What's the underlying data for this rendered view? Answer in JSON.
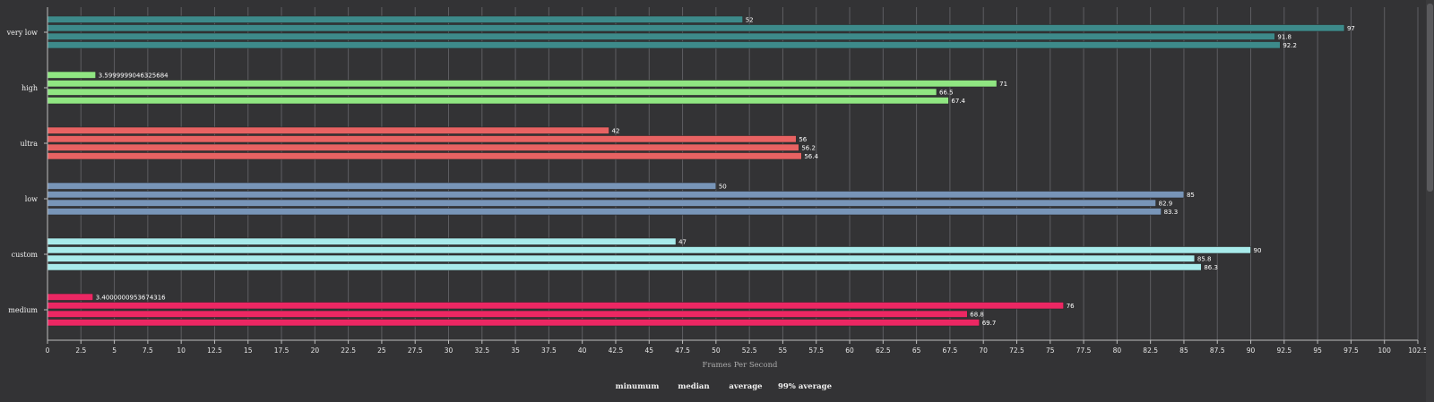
{
  "chart_data": {
    "type": "bar",
    "orientation": "horizontal",
    "title": "",
    "xlabel": "Frames Per Second",
    "ylabel": "",
    "xlim": [
      0,
      102.5
    ],
    "tick_step": 2.5,
    "x_ticks": [
      "0",
      "2.5",
      "5",
      "7.5",
      "10",
      "12.5",
      "15",
      "17.5",
      "20",
      "22.5",
      "25",
      "27.5",
      "30",
      "32.5",
      "35",
      "37.5",
      "40",
      "42.5",
      "45",
      "47.5",
      "50",
      "52.5",
      "55",
      "57.5",
      "60",
      "62.5",
      "65",
      "67.5",
      "70",
      "72.5",
      "75",
      "77.5",
      "80",
      "82.5",
      "85",
      "87.5",
      "90",
      "92.5",
      "95",
      "97.5",
      "100",
      "102.5"
    ],
    "grid": true,
    "legend_position": "bottom",
    "legend": [
      "minumum",
      "median",
      "average",
      "99% average"
    ],
    "categories": [
      {
        "name": "very low",
        "color": "#3d8a8a",
        "values": [
          52,
          97,
          91.8,
          92.2
        ],
        "labels": [
          "52",
          "97",
          "91.8",
          "92.2"
        ]
      },
      {
        "name": "high",
        "color": "#90e682",
        "values": [
          3.5999999046325684,
          71,
          66.5,
          67.4
        ],
        "labels": [
          "3.5999999046325684",
          "71",
          "66.5",
          "67.4"
        ]
      },
      {
        "name": "ultra",
        "color": "#e86262",
        "values": [
          42,
          56,
          56.2,
          56.4
        ],
        "labels": [
          "42",
          "56",
          "56.2",
          "56.4"
        ]
      },
      {
        "name": "low",
        "color": "#7895b8",
        "values": [
          50,
          85,
          82.9,
          83.3
        ],
        "labels": [
          "50",
          "85",
          "82.9",
          "83.3"
        ]
      },
      {
        "name": "custom",
        "color": "#a8ebeb",
        "values": [
          47,
          90,
          85.8,
          86.3
        ],
        "labels": [
          "47",
          "90",
          "85.8",
          "86.3"
        ]
      },
      {
        "name": "medium",
        "color": "#ec2763",
        "values": [
          3.4000000953674316,
          76,
          68.8,
          69.7
        ],
        "labels": [
          "3.4000000953674316",
          "76",
          "68.8",
          "69.7"
        ]
      }
    ]
  }
}
